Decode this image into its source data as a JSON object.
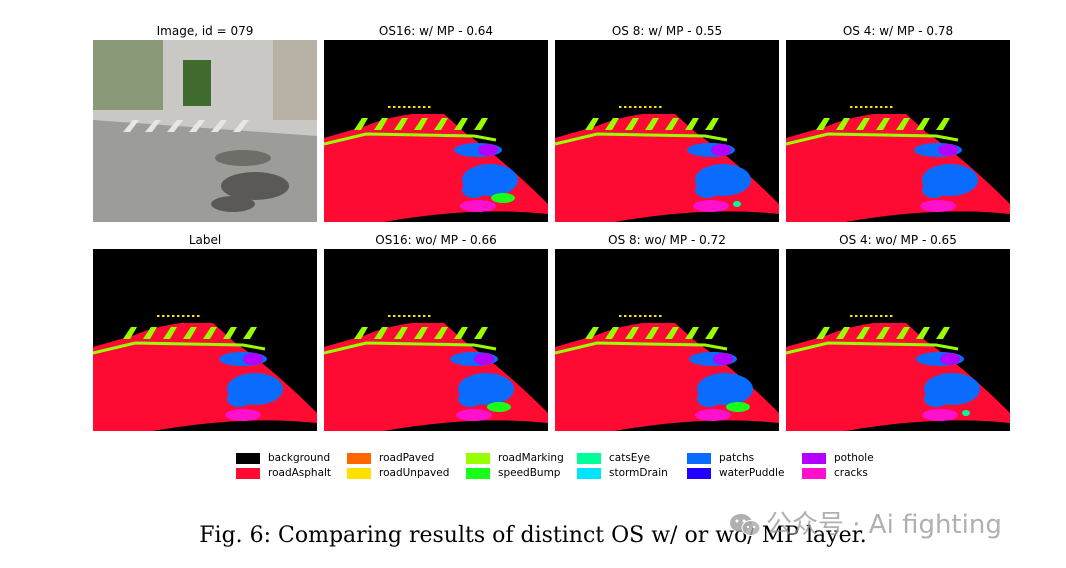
{
  "figure": {
    "panels": [
      {
        "title": "Image, id = 079",
        "kind": "photo"
      },
      {
        "title": "OS16: w/ MP - 0.64",
        "kind": "seg",
        "variant": 1
      },
      {
        "title": "OS 8: w/ MP - 0.55",
        "kind": "seg",
        "variant": 2
      },
      {
        "title": "OS 4: w/ MP - 0.78",
        "kind": "seg",
        "variant": 3
      },
      {
        "title": "Label",
        "kind": "seg",
        "variant": 0
      },
      {
        "title": "OS16: wo/ MP - 0.66",
        "kind": "seg",
        "variant": 4
      },
      {
        "title": "OS 8: wo/ MP - 0.72",
        "kind": "seg",
        "variant": 5
      },
      {
        "title": "OS 4: wo/ MP - 0.65",
        "kind": "seg",
        "variant": 6
      }
    ],
    "legend": [
      {
        "label": "background",
        "color": "#000000"
      },
      {
        "label": "roadAsphalt",
        "color": "#ff0a33"
      },
      {
        "label": "roadPaved",
        "color": "#ff6600"
      },
      {
        "label": "roadUnpaved",
        "color": "#ffe000"
      },
      {
        "label": "roadMarking",
        "color": "#99ff00"
      },
      {
        "label": "speedBump",
        "color": "#1aff1a"
      },
      {
        "label": "catsEye",
        "color": "#00ff99"
      },
      {
        "label": "stormDrain",
        "color": "#00e5ff"
      },
      {
        "label": "patchs",
        "color": "#0a6cff"
      },
      {
        "label": "waterPuddle",
        "color": "#2200ff"
      },
      {
        "label": "pothole",
        "color": "#b300ff"
      },
      {
        "label": "cracks",
        "color": "#ff10cc"
      }
    ],
    "caption": "Fig. 6: Comparing results of distinct OS w/ or wo/ MP layer.",
    "watermark": "公众号 · Ai fighting"
  }
}
